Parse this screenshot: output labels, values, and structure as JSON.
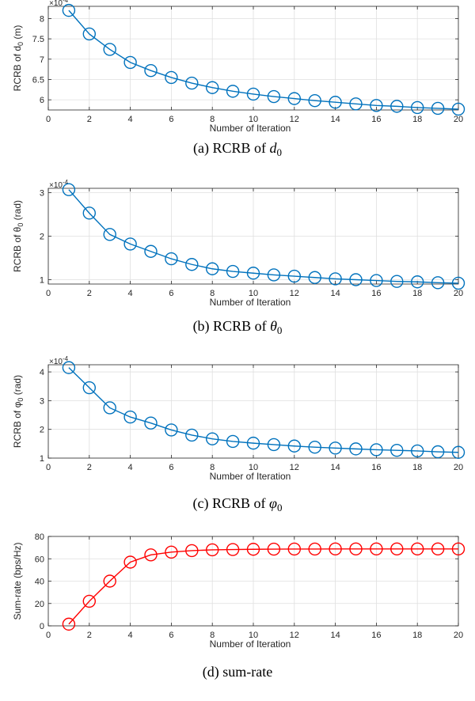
{
  "chart_data": [
    {
      "type": "line",
      "xlabel": "Number of Iteration",
      "ylabel": "RCRB of d",
      "ylabel_sub": "0",
      "ylabel_unit": " (m)",
      "exponent_base": "×10",
      "exponent_power": "-4",
      "caption_prefix": "(a) RCRB of ",
      "caption_var": "d",
      "caption_sub": "0",
      "xlim": [
        0,
        20
      ],
      "ylim": [
        5.75,
        8.3
      ],
      "xticks": [
        "0",
        "2",
        "4",
        "6",
        "8",
        "10",
        "12",
        "14",
        "16",
        "18",
        "20"
      ],
      "yticks": [
        6,
        6.5,
        7,
        7.5,
        8
      ],
      "ytick_labels": [
        "6",
        "6.5",
        "7",
        "7.5",
        "8"
      ],
      "grid": true,
      "color": "#0072BD",
      "x": [
        1,
        2,
        3,
        4,
        5,
        6,
        7,
        8,
        9,
        10,
        11,
        12,
        13,
        14,
        15,
        16,
        17,
        18,
        19,
        20
      ],
      "y": [
        8.2,
        7.62,
        7.24,
        6.92,
        6.72,
        6.55,
        6.41,
        6.3,
        6.21,
        6.14,
        6.08,
        6.03,
        5.98,
        5.94,
        5.9,
        5.86,
        5.84,
        5.81,
        5.79,
        5.77
      ]
    },
    {
      "type": "line",
      "xlabel": "Number of Iteration",
      "ylabel": "RCRB of θ",
      "ylabel_sub": "0",
      "ylabel_unit": " (rad)",
      "exponent_base": "×10",
      "exponent_power": "-4",
      "caption_prefix": "(b) RCRB of ",
      "caption_var": "θ",
      "caption_sub": "0",
      "xlim": [
        0,
        20
      ],
      "ylim": [
        0.9,
        3.1
      ],
      "xticks": [
        "0",
        "2",
        "4",
        "6",
        "8",
        "10",
        "12",
        "14",
        "16",
        "18",
        "20"
      ],
      "yticks": [
        1,
        2,
        3
      ],
      "ytick_labels": [
        "1",
        "2",
        "3"
      ],
      "grid": true,
      "color": "#0072BD",
      "x": [
        1,
        2,
        3,
        4,
        5,
        6,
        7,
        8,
        9,
        10,
        11,
        12,
        13,
        14,
        15,
        16,
        17,
        18,
        19,
        20
      ],
      "y": [
        3.07,
        2.53,
        2.04,
        1.82,
        1.65,
        1.48,
        1.35,
        1.25,
        1.19,
        1.15,
        1.11,
        1.08,
        1.05,
        1.02,
        1.0,
        0.98,
        0.96,
        0.95,
        0.93,
        0.92
      ]
    },
    {
      "type": "line",
      "xlabel": "Number of Iteration",
      "ylabel": "RCRB of φ",
      "ylabel_sub": "0",
      "ylabel_unit": " (rad)",
      "exponent_base": "×10",
      "exponent_power": "-4",
      "caption_prefix": "(c) RCRB of ",
      "caption_var": "φ",
      "caption_sub": "0",
      "xlim": [
        0,
        20
      ],
      "ylim": [
        1,
        4.25
      ],
      "xticks": [
        "0",
        "2",
        "4",
        "6",
        "8",
        "10",
        "12",
        "14",
        "16",
        "18",
        "20"
      ],
      "yticks": [
        1,
        2,
        3,
        4
      ],
      "ytick_labels": [
        "1",
        "2",
        "3",
        "4"
      ],
      "grid": true,
      "color": "#0072BD",
      "x": [
        1,
        2,
        3,
        4,
        5,
        6,
        7,
        8,
        9,
        10,
        11,
        12,
        13,
        14,
        15,
        16,
        17,
        18,
        19,
        20
      ],
      "y": [
        4.15,
        3.45,
        2.75,
        2.43,
        2.22,
        1.98,
        1.8,
        1.67,
        1.58,
        1.52,
        1.47,
        1.42,
        1.38,
        1.35,
        1.32,
        1.29,
        1.27,
        1.25,
        1.22,
        1.2
      ]
    },
    {
      "type": "line",
      "xlabel": "Number of Iteration",
      "ylabel": "Sum-rate (bps/Hz)",
      "ylabel_sub": "",
      "ylabel_unit": "",
      "exponent_base": "",
      "exponent_power": "",
      "caption_prefix": "(d) sum-rate",
      "caption_var": "",
      "caption_sub": "",
      "xlim": [
        0,
        20
      ],
      "ylim": [
        0,
        80
      ],
      "xticks": [
        "0",
        "2",
        "4",
        "6",
        "8",
        "10",
        "12",
        "14",
        "16",
        "18",
        "20"
      ],
      "yticks": [
        0,
        20,
        40,
        60,
        80
      ],
      "ytick_labels": [
        "0",
        "20",
        "40",
        "60",
        "80"
      ],
      "grid": true,
      "color": "#FF0000",
      "x": [
        1,
        2,
        3,
        4,
        5,
        6,
        7,
        8,
        9,
        10,
        11,
        12,
        13,
        14,
        15,
        16,
        17,
        18,
        19,
        20
      ],
      "y": [
        1.5,
        22,
        40,
        57,
        63.5,
        66,
        67.3,
        68,
        68.3,
        68.5,
        68.6,
        68.7,
        68.7,
        68.8,
        68.8,
        68.8,
        68.8,
        68.8,
        68.8,
        68.8
      ]
    }
  ]
}
